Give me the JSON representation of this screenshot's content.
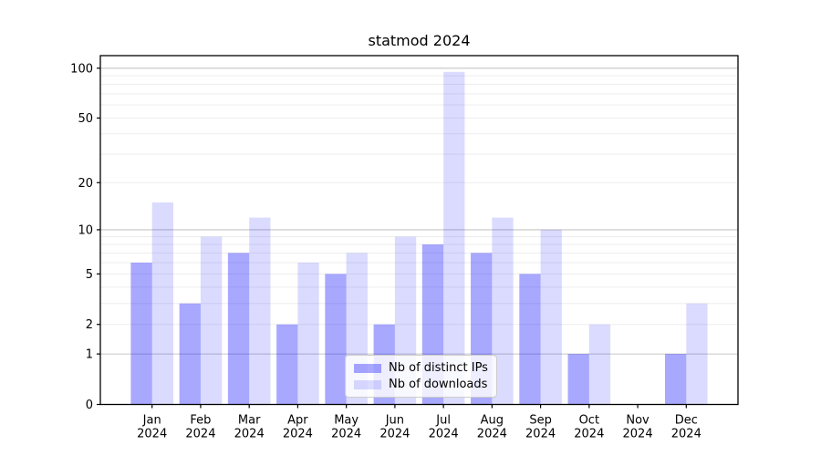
{
  "chart_data": {
    "type": "bar",
    "title": "statmod 2024",
    "categories": [
      "Jan",
      "Feb",
      "Mar",
      "Apr",
      "May",
      "Jun",
      "Jul",
      "Aug",
      "Sep",
      "Oct",
      "Nov",
      "Dec"
    ],
    "category_year": "2024",
    "series": [
      {
        "name": "Nb of distinct IPs",
        "color": "rgba(0,0,255,0.34)",
        "values": [
          6,
          3,
          7,
          2,
          5,
          2,
          8,
          7,
          5,
          1,
          0,
          1
        ]
      },
      {
        "name": "Nb of downloads",
        "color": "rgba(0,0,255,0.14)",
        "values": [
          15,
          9,
          12,
          6,
          7,
          9,
          95,
          12,
          10,
          2,
          0,
          3
        ]
      }
    ],
    "y_scale": "log1p",
    "ylim": [
      0,
      119
    ],
    "y_ticks": [
      0,
      1,
      2,
      5,
      10,
      20,
      50,
      100
    ],
    "y_gridlines_major": [
      1,
      10,
      100
    ],
    "y_gridlines_minor": [
      2,
      3,
      4,
      5,
      6,
      7,
      8,
      9,
      20,
      30,
      40,
      50,
      60,
      70,
      80,
      90
    ],
    "grid": true,
    "legend_position": "lower center",
    "colors": {
      "background": "#ffffff",
      "axis": "#000000",
      "text": "#000000",
      "major_grid": "#c6c6c6",
      "minor_grid": "#ededed",
      "legend_border": "#cccccc"
    }
  }
}
